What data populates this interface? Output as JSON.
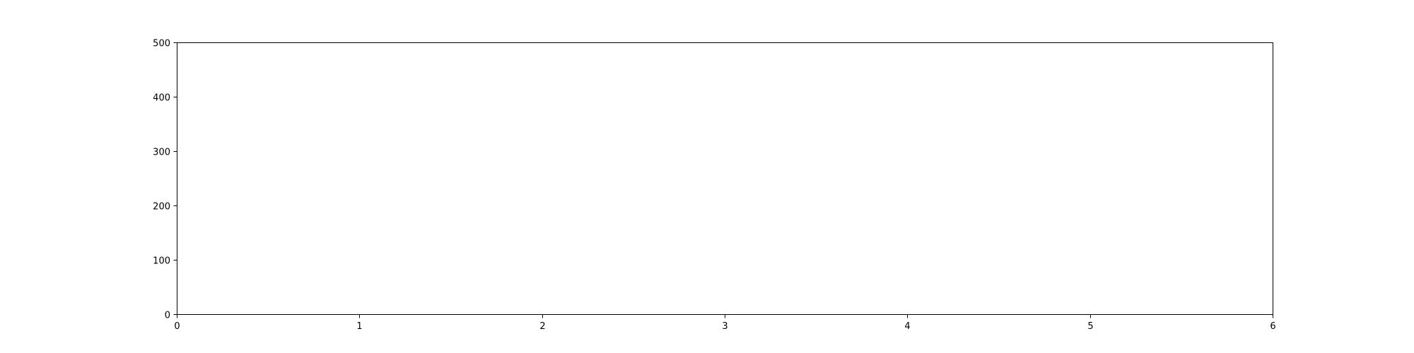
{
  "chart_data": {
    "type": "line",
    "title": "",
    "xlabel": "",
    "ylabel": "",
    "xlim": [
      0,
      6
    ],
    "ylim": [
      0,
      500
    ],
    "x_ticks": [
      0,
      1,
      2,
      3,
      4,
      5,
      6
    ],
    "y_ticks": [
      0,
      100,
      200,
      300,
      400,
      500
    ],
    "x_tick_labels": [
      "0",
      "1",
      "2",
      "3",
      "4",
      "5",
      "6"
    ],
    "y_tick_labels": [
      "0",
      "100",
      "200",
      "300",
      "400",
      "500"
    ],
    "grid": false,
    "series": []
  }
}
